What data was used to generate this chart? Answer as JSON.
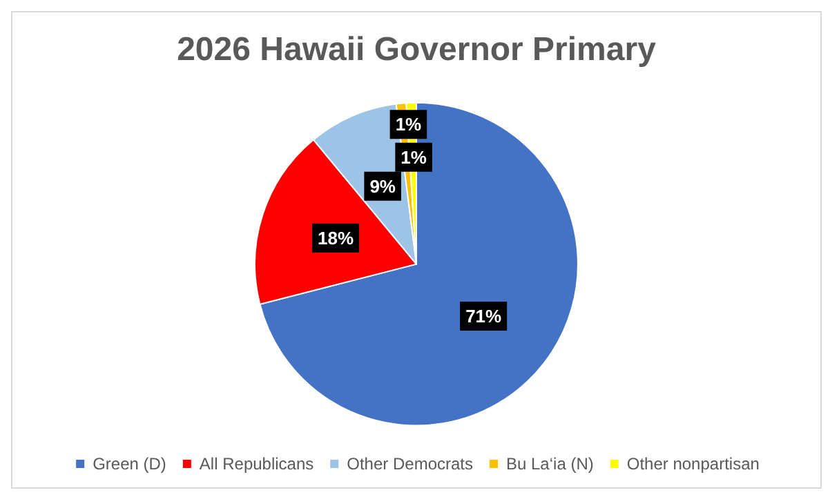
{
  "chart_data": {
    "type": "pie",
    "title": "2026 Hawaii Governor Primary",
    "categories": [
      "Green (D)",
      "All Republicans",
      "Other Democrats",
      "Bu La‘ia (N)",
      "Other nonpartisan"
    ],
    "values": [
      71,
      18,
      9,
      1,
      1
    ],
    "colors": [
      "#4472c4",
      "#ff0000",
      "#9dc3e6",
      "#ffc000",
      "#ffff00"
    ],
    "value_labels": [
      "71%",
      "18%",
      "9%",
      "1%",
      "1%"
    ],
    "legend": "bottom"
  }
}
